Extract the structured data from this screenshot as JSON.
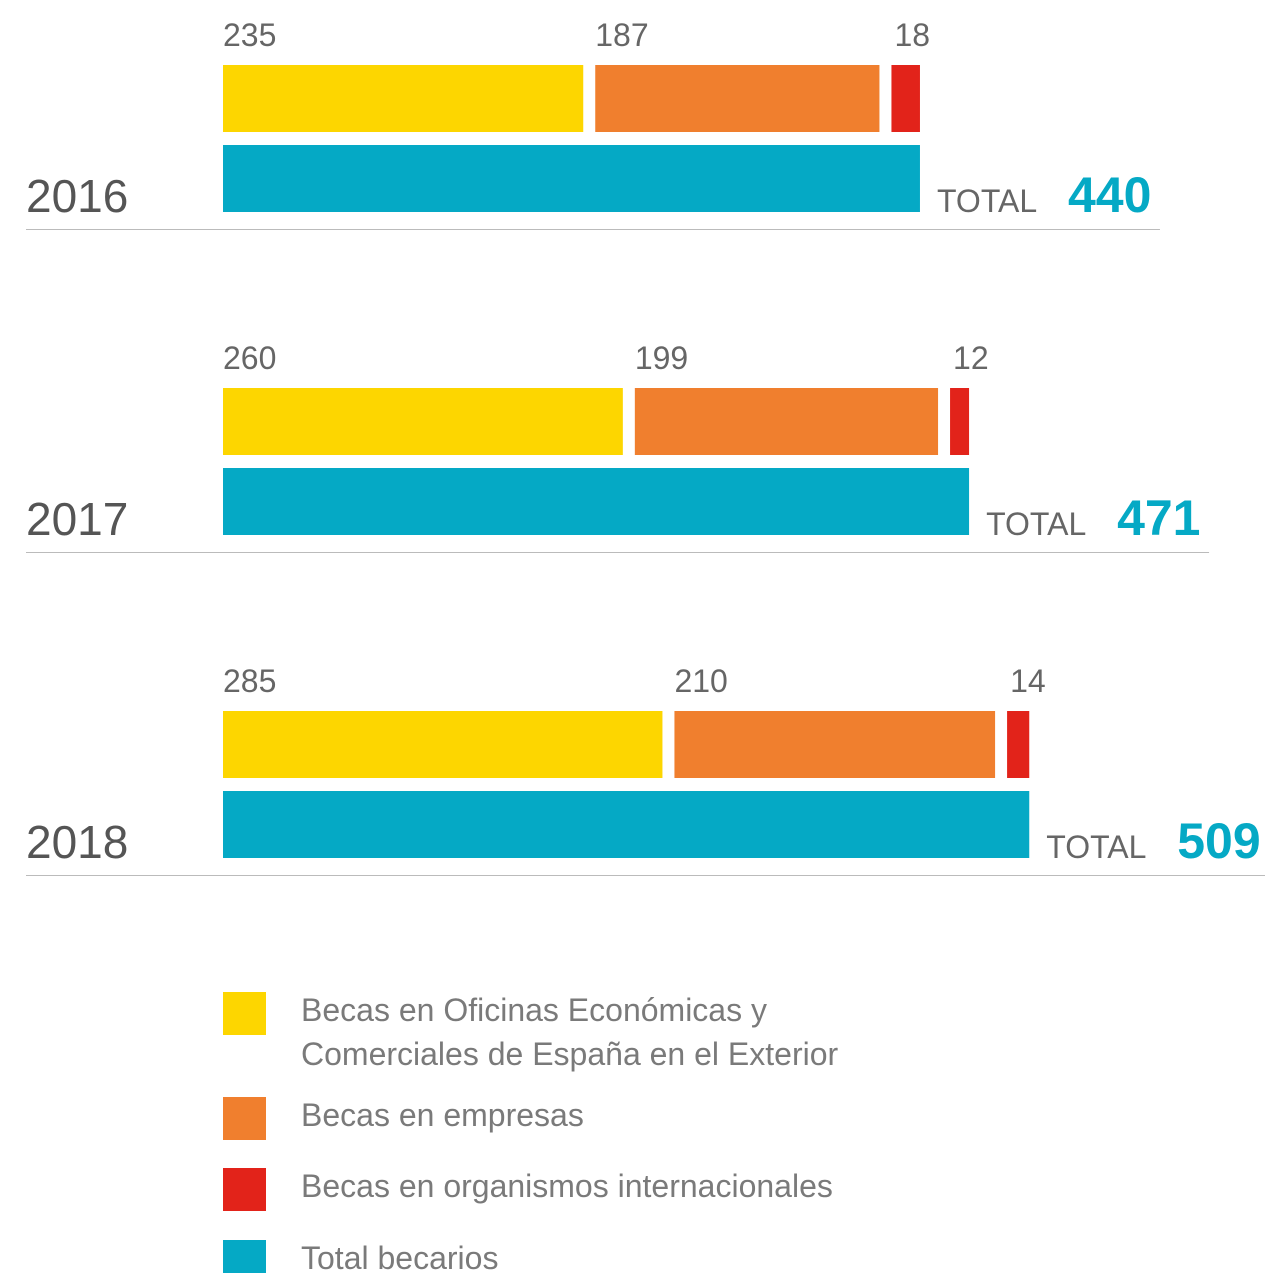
{
  "chart_data": {
    "type": "bar",
    "categories": [
      "2016",
      "2017",
      "2018"
    ],
    "total_label": "TOTAL",
    "series": [
      {
        "name": "Becas en Oficinas Económicas y Comerciales de España en el Exterior",
        "color": "#fdd600",
        "values": [
          235,
          260,
          285
        ]
      },
      {
        "name": "Becas en empresas",
        "color": "#f07f2e",
        "values": [
          187,
          199,
          210
        ]
      },
      {
        "name": "Becas en organismos internacionales",
        "color": "#e2231a",
        "values": [
          18,
          12,
          14
        ]
      },
      {
        "name": "Total becarios",
        "color": "#05a9c5",
        "values": [
          440,
          471,
          509
        ]
      }
    ]
  }
}
